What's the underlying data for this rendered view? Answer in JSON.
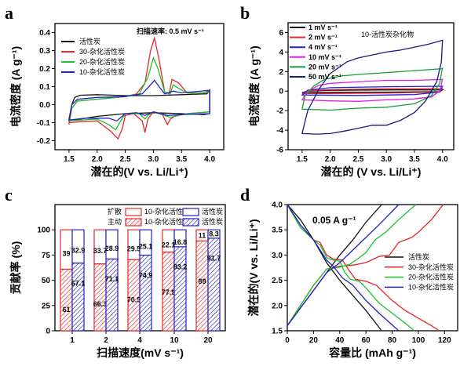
{
  "chart_data": [
    {
      "panel": "a",
      "type": "line",
      "xlabel": "潜在的(V vs. Li/Li⁺)",
      "ylabel": "电流密度 (A g⁻¹)",
      "xlim": [
        1.25,
        4.25
      ],
      "ylim": [
        -0.25,
        0.45
      ],
      "xticks": [
        1.5,
        2.0,
        2.5,
        3.0,
        3.5,
        4.0
      ],
      "yticks": [
        -0.2,
        -0.1,
        0.0,
        0.1,
        0.2,
        0.3,
        0.4
      ],
      "tick_decimals": 1,
      "annotation": "扫描速率: 0.5 mV s⁻¹",
      "legend_position": "top-left",
      "grid": false,
      "series": [
        {
          "name": "活性炭",
          "color": "#111111",
          "x": [
            1.5,
            1.55,
            1.6,
            1.7,
            2.0,
            2.5,
            3.0,
            3.5,
            3.95,
            4.0,
            4.0,
            3.9,
            3.5,
            3.0,
            2.5,
            2.0,
            1.6,
            1.5
          ],
          "y": [
            -0.08,
            0.0,
            0.04,
            0.052,
            0.055,
            0.05,
            0.05,
            0.055,
            0.06,
            0.08,
            -0.05,
            -0.055,
            -0.05,
            -0.045,
            -0.05,
            -0.065,
            -0.085,
            -0.09
          ]
        },
        {
          "name": "30-杂化活性炭",
          "color": "#e8262a",
          "x": [
            1.5,
            1.55,
            1.65,
            2.0,
            2.5,
            2.7,
            2.85,
            2.95,
            3.02,
            3.1,
            3.2,
            3.28,
            3.33,
            3.45,
            3.6,
            3.9,
            4.0,
            4.0,
            3.6,
            3.4,
            3.3,
            3.25,
            3.15,
            3.0,
            2.9,
            2.85,
            2.8,
            2.65,
            2.5,
            2.45,
            2.37,
            2.25,
            2.0,
            1.7,
            1.5
          ],
          "y": [
            -0.11,
            -0.02,
            0.02,
            0.03,
            0.045,
            0.06,
            0.12,
            0.3,
            0.37,
            0.25,
            0.07,
            0.06,
            0.14,
            0.12,
            0.065,
            0.065,
            0.08,
            -0.04,
            -0.05,
            -0.06,
            -0.08,
            -0.11,
            -0.05,
            -0.04,
            -0.08,
            -0.155,
            -0.09,
            -0.05,
            -0.06,
            -0.13,
            -0.19,
            -0.15,
            -0.09,
            -0.095,
            -0.1
          ]
        },
        {
          "name": "20-杂化活性炭",
          "color": "#18c42c",
          "x": [
            1.5,
            1.55,
            1.65,
            2.0,
            2.5,
            2.75,
            2.9,
            3.0,
            3.08,
            3.2,
            3.3,
            3.35,
            3.5,
            3.7,
            4.0,
            4.0,
            3.6,
            3.3,
            3.2,
            3.0,
            2.9,
            2.85,
            2.75,
            2.5,
            2.4,
            2.33,
            2.2,
            2.0,
            1.5
          ],
          "y": [
            -0.09,
            -0.02,
            0.02,
            0.03,
            0.045,
            0.06,
            0.15,
            0.26,
            0.2,
            0.07,
            0.06,
            0.11,
            0.08,
            0.06,
            0.07,
            -0.04,
            -0.05,
            -0.07,
            -0.06,
            -0.04,
            -0.06,
            -0.08,
            -0.05,
            -0.05,
            -0.1,
            -0.14,
            -0.11,
            -0.08,
            -0.09
          ]
        },
        {
          "name": "10-杂化活性炭",
          "color": "#2020c8",
          "x": [
            1.5,
            1.55,
            1.65,
            2.0,
            2.5,
            2.8,
            2.95,
            3.02,
            3.1,
            3.2,
            3.35,
            3.5,
            4.0,
            4.0,
            3.5,
            3.25,
            3.0,
            2.85,
            2.7,
            2.5,
            2.35,
            2.2,
            1.8,
            1.5
          ],
          "y": [
            -0.085,
            0.0,
            0.03,
            0.04,
            0.045,
            0.06,
            0.11,
            0.135,
            0.1,
            0.06,
            0.075,
            0.065,
            0.08,
            -0.05,
            -0.055,
            -0.06,
            -0.04,
            -0.06,
            -0.045,
            -0.05,
            -0.09,
            -0.075,
            -0.075,
            -0.085
          ]
        }
      ]
    },
    {
      "panel": "b",
      "type": "line",
      "xlabel": "潜在的 (V vs. Li/Li⁺)",
      "ylabel": "电流密度 (A g⁻¹)",
      "xlim": [
        1.25,
        4.2
      ],
      "ylim": [
        -6,
        7
      ],
      "xticks": [
        1.5,
        2.0,
        2.5,
        3.0,
        3.5,
        4.0
      ],
      "yticks": [
        -6,
        -4,
        -2,
        0,
        2,
        4,
        6
      ],
      "tick_decimals": 0,
      "annotation": "10-活性炭杂化物",
      "legend_position": "top-left",
      "grid": false,
      "series": [
        {
          "name": "1 mV s⁻¹",
          "color": "#111111",
          "x": [
            1.5,
            1.6,
            2,
            3,
            4,
            4,
            3.95,
            3,
            2,
            1.5
          ],
          "y": [
            -0.15,
            0,
            0.08,
            0.12,
            0.12,
            0.12,
            -0.05,
            -0.1,
            -0.12,
            -0.15
          ]
        },
        {
          "name": "2 mV s⁻¹",
          "color": "#e8262a",
          "x": [
            1.5,
            1.6,
            2,
            3,
            4,
            4,
            3.95,
            3,
            2,
            1.5
          ],
          "y": [
            -0.25,
            0.05,
            0.15,
            0.25,
            0.25,
            0.25,
            -0.1,
            -0.2,
            -0.25,
            -0.25
          ]
        },
        {
          "name": "4 mV s⁻¹",
          "color": "#2020e0",
          "x": [
            1.5,
            1.6,
            2,
            3,
            4,
            4,
            3.95,
            3.5,
            2.5,
            1.5
          ],
          "y": [
            -0.4,
            0.1,
            0.35,
            0.45,
            0.5,
            0.5,
            -0.1,
            -0.35,
            -0.45,
            -0.4
          ]
        },
        {
          "name": "10 mV s⁻¹",
          "color": "#e020e0",
          "x": [
            1.5,
            1.6,
            1.8,
            2.0,
            2.5,
            3.0,
            3.5,
            4.0,
            4.0,
            3.95,
            3.8,
            3.5,
            3.0,
            2.5,
            2.0,
            1.5
          ],
          "y": [
            -0.9,
            0.0,
            0.6,
            0.8,
            0.95,
            1.1,
            1.1,
            1.2,
            1.2,
            0.0,
            -0.6,
            -0.8,
            -0.9,
            -1.05,
            -1.0,
            -0.9
          ]
        },
        {
          "name": "20 mV s⁻¹",
          "color": "#12a030",
          "x": [
            1.5,
            1.55,
            1.7,
            1.9,
            2.2,
            2.5,
            3.0,
            3.5,
            4.0,
            4.0,
            3.95,
            3.8,
            3.5,
            3.0,
            2.5,
            2.0,
            1.5
          ],
          "y": [
            -1.8,
            -0.5,
            0.5,
            1.2,
            1.55,
            1.7,
            1.9,
            2.1,
            2.3,
            2.4,
            0.8,
            -0.5,
            -1.3,
            -1.65,
            -1.75,
            -1.95,
            -1.85
          ]
        },
        {
          "name": "50 mV s⁻¹",
          "color": "#1a1a80",
          "x": [
            1.5,
            1.6,
            1.8,
            2.0,
            2.3,
            2.5,
            2.75,
            3.0,
            3.25,
            3.5,
            3.75,
            4.0,
            3.98,
            3.9,
            3.7,
            3.5,
            3.25,
            3.0,
            2.75,
            2.5,
            2.25,
            2.0,
            1.75,
            1.5
          ],
          "y": [
            -4.3,
            -2,
            0.2,
            1.8,
            3.0,
            3.4,
            3.7,
            4.0,
            4.2,
            4.5,
            4.8,
            5.2,
            3,
            1,
            -1,
            -2.2,
            -3.0,
            -3.5,
            -3.5,
            -3.8,
            -4.1,
            -4.35,
            -4.4,
            -4.35
          ]
        }
      ]
    },
    {
      "panel": "c",
      "type": "bar",
      "stacked": true,
      "xlabel": "扫描速度(mV s⁻¹)",
      "ylabel": "贡献率 (%)",
      "ylim": [
        0,
        125
      ],
      "yticks": [
        0,
        25,
        50,
        75,
        100
      ],
      "categories": [
        "1",
        "2",
        "4",
        "10",
        "20"
      ],
      "legend_position": "top",
      "legend_row_labels": [
        "扩散",
        "主动"
      ],
      "series": [
        {
          "name": "10-杂化活性炭",
          "color": "#e8262a",
          "capacitive": [
            61,
            66.3,
            70.5,
            77.9,
            89
          ],
          "diffusion": [
            39,
            33.7,
            29.5,
            22.1,
            11
          ]
        },
        {
          "name": "活性炭",
          "color": "#2020c8",
          "capacitive": [
            67.1,
            71.1,
            74.9,
            83.2,
            91.7
          ],
          "diffusion": [
            32.9,
            28.9,
            25.1,
            16.8,
            8.3
          ]
        }
      ]
    },
    {
      "panel": "d",
      "type": "line",
      "xlabel": "容量比 (mAh g⁻¹)",
      "ylabel": "潜在的(V vs. Li/Li⁺)",
      "xlim": [
        0,
        130
      ],
      "ylim": [
        1.5,
        4.0
      ],
      "xticks": [
        0,
        20,
        40,
        60,
        80,
        100,
        120
      ],
      "yticks": [
        1.5,
        2.0,
        2.5,
        3.0,
        3.5,
        4.0
      ],
      "tick_decimals": 1,
      "xtick_decimals": 0,
      "annotation": "0.05 A g⁻¹",
      "legend_position": "right",
      "grid": false,
      "series": [
        {
          "name": "活性炭",
          "color": "#111111",
          "charge": {
            "x": [
              0,
              10,
              20,
              30,
              40,
              50,
              60,
              72
            ],
            "y": [
              1.6,
              1.95,
              2.3,
              2.65,
              3.0,
              3.3,
              3.65,
              4.0
            ]
          },
          "discharge": {
            "x": [
              0,
              10,
              20,
              30,
              40,
              50,
              60,
              72
            ],
            "y": [
              4.0,
              3.7,
              3.3,
              2.85,
              2.5,
              2.2,
              1.9,
              1.5
            ]
          }
        },
        {
          "name": "30-杂化活性炭",
          "color": "#e8262a",
          "charge": {
            "x": [
              0,
              10,
              20,
              30,
              40,
              50,
              60,
              70,
              78,
              85,
              95,
              100,
              110,
              119
            ],
            "y": [
              1.6,
              2.0,
              2.4,
              2.72,
              2.78,
              2.8,
              2.85,
              2.97,
              3.0,
              3.25,
              3.35,
              3.45,
              3.7,
              4.0
            ]
          },
          "discharge": {
            "x": [
              0,
              10,
              20,
              25,
              30,
              35,
              42,
              47,
              52,
              60,
              68,
              80,
              90,
              100,
              110,
              116
            ],
            "y": [
              4.0,
              3.55,
              3.3,
              3.25,
              3.0,
              2.92,
              2.9,
              2.7,
              2.52,
              2.48,
              2.4,
              2.1,
              1.9,
              1.75,
              1.6,
              1.5
            ]
          }
        },
        {
          "name": "20-杂化活性炭",
          "color": "#18c42c",
          "charge": {
            "x": [
              0,
              10,
              20,
              30,
              40,
              48,
              55,
              60,
              67,
              75,
              85,
              98
            ],
            "y": [
              1.6,
              2.0,
              2.4,
              2.72,
              2.76,
              2.82,
              2.95,
              3.05,
              3.3,
              3.45,
              3.7,
              4.0
            ]
          },
          "discharge": {
            "x": [
              0,
              10,
              20,
              25,
              30,
              35,
              40,
              44,
              48,
              55,
              60,
              70,
              80,
              90,
              97
            ],
            "y": [
              4.0,
              3.55,
              3.3,
              3.2,
              2.95,
              2.9,
              2.88,
              2.65,
              2.52,
              2.48,
              2.35,
              2.05,
              1.85,
              1.65,
              1.5
            ]
          }
        },
        {
          "name": "10-杂化活性炭",
          "color": "#2020c8",
          "charge": {
            "x": [
              0,
              10,
              20,
              30,
              40,
              50,
              60,
              70,
              85
            ],
            "y": [
              1.6,
              1.95,
              2.3,
              2.65,
              2.85,
              3.1,
              3.35,
              3.6,
              4.0
            ]
          },
          "discharge": {
            "x": [
              0,
              10,
              20,
              30,
              35,
              42,
              50,
              60,
              70,
              85
            ],
            "y": [
              4.0,
              3.6,
              3.3,
              2.9,
              2.78,
              2.55,
              2.4,
              2.1,
              1.85,
              1.5
            ]
          }
        }
      ]
    }
  ],
  "panel_letters": [
    "a",
    "b",
    "c",
    "d"
  ]
}
